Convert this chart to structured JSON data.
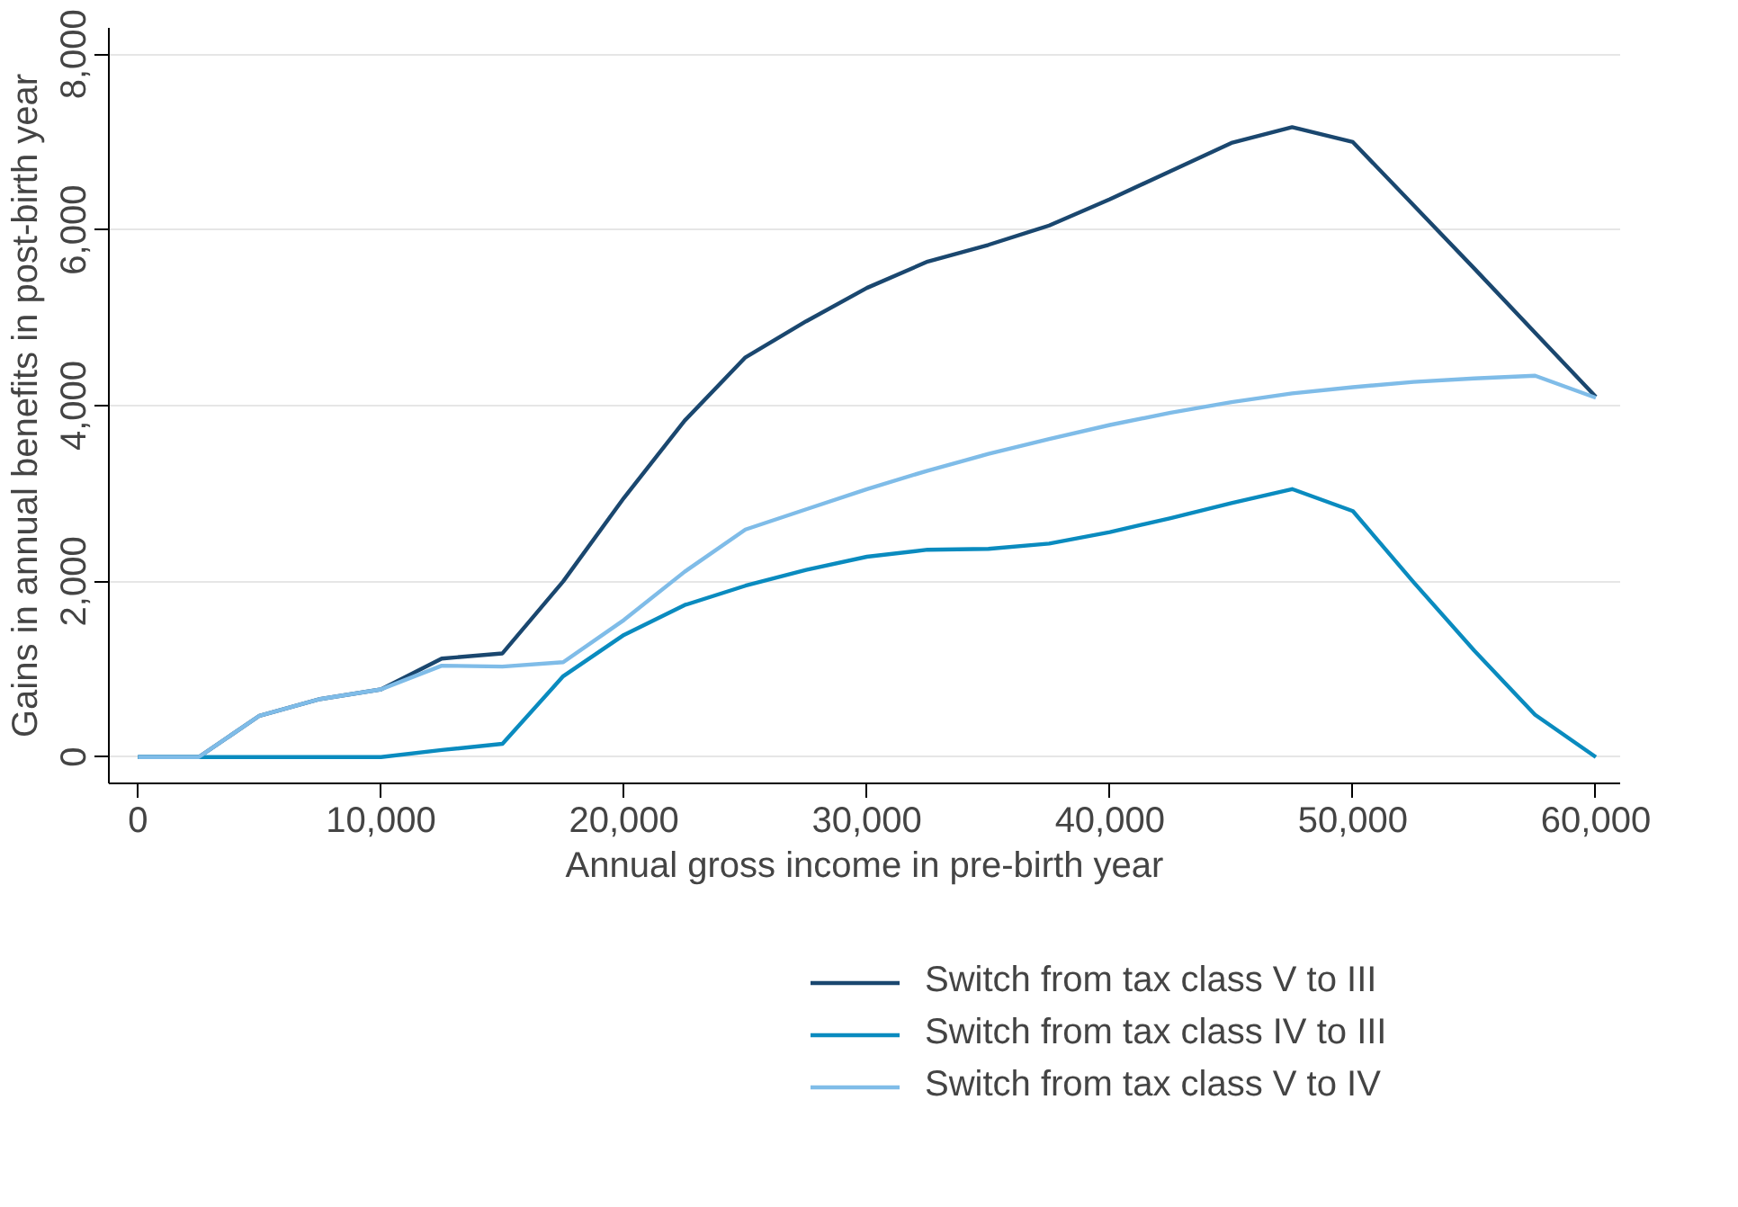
{
  "chart_data": {
    "type": "line",
    "xlabel": "Annual gross income in pre-birth year",
    "ylabel": "Gains in annual benefits in post-birth year",
    "x": [
      0,
      2500,
      5000,
      7500,
      10000,
      12500,
      15000,
      17500,
      20000,
      22500,
      25000,
      27500,
      30000,
      32500,
      35000,
      37500,
      40000,
      42500,
      45000,
      47500,
      50000,
      52500,
      55000,
      57500,
      60000
    ],
    "series": [
      {
        "name": "Switch from tax class V to III",
        "color": "#1a476f",
        "values": [
          0,
          0,
          470,
          660,
          770,
          1120,
          1180,
          2000,
          2950,
          3830,
          4550,
          4960,
          5340,
          5640,
          5830,
          6050,
          6350,
          6670,
          6990,
          7170,
          7000,
          6280,
          5560,
          4830,
          4100
        ]
      },
      {
        "name": "Switch from tax class IV to III",
        "color": "#0a8bbf",
        "values": [
          0,
          0,
          0,
          0,
          0,
          80,
          150,
          920,
          1390,
          1730,
          1950,
          2130,
          2280,
          2360,
          2370,
          2430,
          2560,
          2720,
          2890,
          3050,
          2800,
          1990,
          1210,
          480,
          0
        ]
      },
      {
        "name": "Switch from tax class V to IV",
        "color": "#7fbce8",
        "values": [
          0,
          0,
          470,
          660,
          770,
          1040,
          1030,
          1080,
          1560,
          2110,
          2590,
          2820,
          3050,
          3260,
          3450,
          3620,
          3780,
          3920,
          4040,
          4140,
          4210,
          4270,
          4310,
          4340,
          4090
        ]
      }
    ],
    "xlim": [
      -1200,
      61000
    ],
    "ylim": [
      -300,
      8300
    ],
    "xticks": [
      {
        "value": 0,
        "label": "0"
      },
      {
        "value": 10000,
        "label": "10,000"
      },
      {
        "value": 20000,
        "label": "20,000"
      },
      {
        "value": 30000,
        "label": "30,000"
      },
      {
        "value": 40000,
        "label": "40,000"
      },
      {
        "value": 50000,
        "label": "50,000"
      },
      {
        "value": 60000,
        "label": "60,000"
      }
    ],
    "yticks": [
      {
        "value": 0,
        "label": "0"
      },
      {
        "value": 2000,
        "label": "2,000"
      },
      {
        "value": 4000,
        "label": "4,000"
      },
      {
        "value": 6000,
        "label": "6,000"
      },
      {
        "value": 8000,
        "label": "8,000"
      }
    ],
    "grid": "y",
    "legend": "bottom",
    "marker": "none",
    "line_style": "solid"
  }
}
